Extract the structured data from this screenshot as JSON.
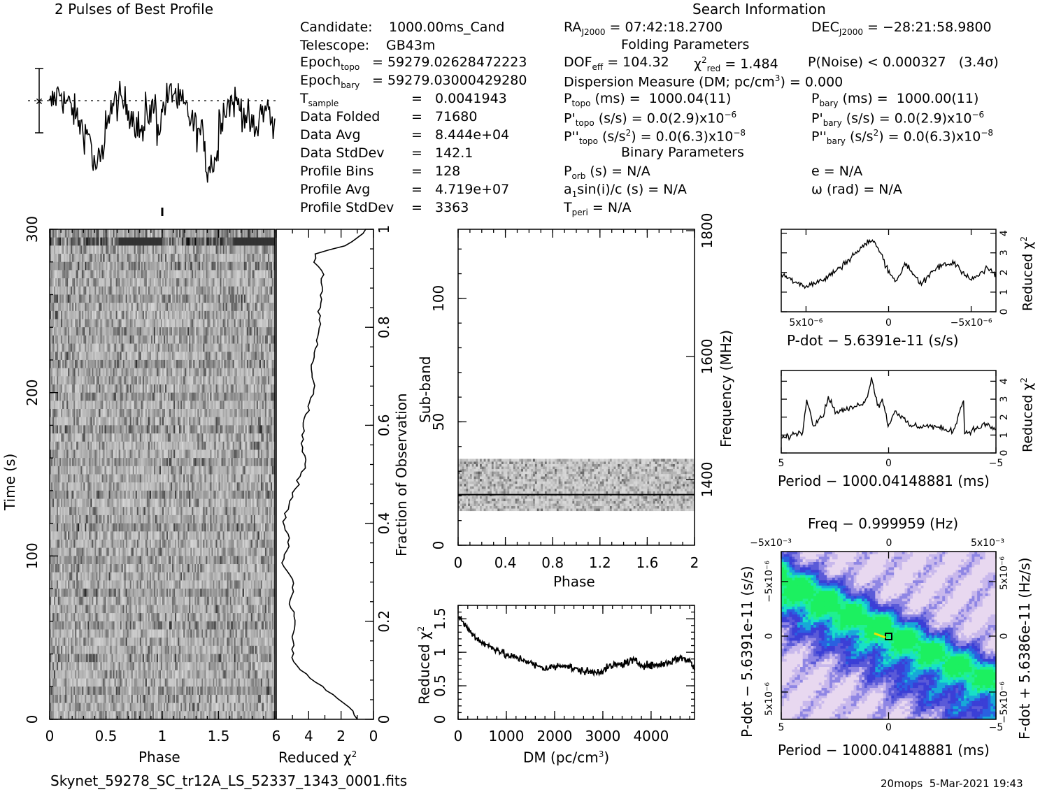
{
  "headers": {
    "profile_title": "2 Pulses of Best Profile",
    "search_title": "Search Information",
    "folding_title": "Folding Parameters",
    "binary_title": "Binary Parameters",
    "filename": "Skynet_59278_SC_tr12A_LS_52337_1343_0001.fits",
    "footer": "20mops  5-Mar-2021 19:43"
  },
  "candidate_info": [
    {
      "label": "Candidate:",
      "value": "1000.00ms_Cand"
    },
    {
      "label": "Telescope:",
      "value": "GB43m"
    },
    {
      "label": "Epoch_topo",
      "value": "= 59279.02628472223"
    },
    {
      "label": "Epoch_bary",
      "value": "= 59279.03000429280"
    },
    {
      "label": "T_sample",
      "value": "0.0041943"
    },
    {
      "label": "Data Folded",
      "value": "71680"
    },
    {
      "label": "Data Avg",
      "value": "8.444e+04"
    },
    {
      "label": "Data StdDev",
      "value": "142.1"
    },
    {
      "label": "Profile Bins",
      "value": "128"
    },
    {
      "label": "Profile Avg",
      "value": "4.719e+07"
    },
    {
      "label": "Profile StdDev",
      "value": "3363"
    }
  ],
  "search_info": {
    "ra": "RA_J2000 = 07:42:18.2700",
    "dec": "DEC_J2000 = −28:21:58.9800",
    "dof": "DOF_eff = 104.32",
    "chi2": "χ²_red = 1.484",
    "pnoise": "P(Noise) < 0.000327   (3.4σ)",
    "dm": "Dispersion Measure (DM; pc/cm³) = 0.000",
    "p_topo": "P_topo (ms) =  1000.04(11)",
    "p_bary": "P_bary (ms) =  1000.00(11)",
    "pd_topo": "P'_topo (s/s) = 0.0(2.9)x10⁻⁶",
    "pd_bary": "P'_bary (s/s) = 0.0(2.9)x10⁻⁶",
    "pdd_topo": "P''_topo (s/s²) = 0.0(6.3)x10⁻⁸",
    "pdd_bary": "P''_bary (s/s²) = 0.0(6.3)x10⁻⁸",
    "p_orb": "P_orb (s) = N/A",
    "e": "e = N/A",
    "a1": "a₁sin(i)/c (s) = N/A",
    "omega": "ω (rad) = N/A",
    "t_peri": "T_peri = N/A"
  },
  "chart_data": [
    {
      "type": "line",
      "title": "2 Pulses of Best Profile",
      "x": "phase 0–2 (two periods, 128 bins each)",
      "note": "noisy profile with dips near phase 0.4 and 1.95"
    },
    {
      "type": "heatmap",
      "name": "time-phase",
      "xlabel": "Phase",
      "ylabel": "Time (s)",
      "xlim": [
        0,
        2
      ],
      "ylim": [
        0,
        300
      ],
      "x_ticks": [
        "0",
        "0.5",
        "1",
        "1.5"
      ],
      "y_ticks": [
        "0",
        "100",
        "200",
        "300"
      ]
    },
    {
      "type": "line",
      "name": "time-chi2",
      "xlabel": "Reduced χ²",
      "ylabel": "Fraction of Observation",
      "xlim": [
        6,
        0
      ],
      "ylim": [
        0,
        1
      ],
      "x_ticks": [
        "6",
        "4",
        "2",
        "0"
      ],
      "y_ticks": [
        "0",
        "0.2",
        "0.4",
        "0.6",
        "0.8",
        "1"
      ],
      "x": [
        1.0,
        1.6,
        2.5,
        3.3,
        4.1,
        5.0,
        5.0,
        4.8,
        5.2,
        4.9,
        5.6,
        5.2,
        5.5,
        5.3,
        4.7,
        4.2,
        4.4,
        4.4,
        4.0,
        3.7,
        3.8,
        3.5,
        3.3,
        3.3,
        3.2,
        3.1,
        3.6,
        3.5,
        1.4,
        0.5
      ],
      "y": [
        0.0,
        0.03,
        0.05,
        0.07,
        0.09,
        0.12,
        0.16,
        0.2,
        0.24,
        0.28,
        0.32,
        0.36,
        0.4,
        0.44,
        0.48,
        0.52,
        0.56,
        0.6,
        0.64,
        0.68,
        0.72,
        0.76,
        0.8,
        0.84,
        0.88,
        0.91,
        0.93,
        0.95,
        0.97,
        1.0
      ]
    },
    {
      "type": "heatmap",
      "name": "subband-phase",
      "xlabel": "Phase",
      "ylabel": "Sub-band",
      "y2label": "Frequency (MHz)",
      "xlim": [
        0,
        2
      ],
      "ylim": [
        0,
        128
      ],
      "x_ticks": [
        "0",
        "0.4",
        "0.8",
        "1.2",
        "1.6",
        "2"
      ],
      "y_ticks": [
        "0",
        "50",
        "100"
      ],
      "y2_ticks": [
        "1400",
        "1600",
        "1800"
      ],
      "band_subbands": [
        14,
        35
      ]
    },
    {
      "type": "line",
      "name": "dm-chi2",
      "xlabel": "DM (pc/cm³)",
      "ylabel": "Reduced χ²",
      "xlim": [
        0,
        4900
      ],
      "ylim": [
        0,
        1.7
      ],
      "x_ticks": [
        "0",
        "1000",
        "2000",
        "3000",
        "4000"
      ],
      "y_ticks": [
        "0",
        "0.5",
        "1",
        "1.5"
      ],
      "x": [
        0,
        200,
        400,
        600,
        800,
        1000,
        1200,
        1400,
        1600,
        1800,
        2000,
        2200,
        2400,
        2600,
        2800,
        3000,
        3200,
        3400,
        3600,
        3800,
        4000,
        4200,
        4400,
        4600,
        4800,
        4900
      ],
      "y": [
        1.55,
        1.35,
        1.2,
        1.1,
        1.05,
        0.95,
        0.92,
        0.88,
        0.8,
        0.76,
        0.78,
        0.82,
        0.75,
        0.72,
        0.7,
        0.73,
        0.8,
        0.82,
        0.88,
        0.82,
        0.8,
        0.82,
        0.86,
        0.92,
        0.88,
        0.75
      ]
    },
    {
      "type": "line",
      "name": "pdot-chi2",
      "xlabel": "P-dot − 5.6391e-11 (s/s)",
      "ylabel": "Reduced χ²",
      "x_ticks": [
        "5x10⁻⁶",
        "0",
        "−5x10⁻⁶"
      ],
      "y_ticks": [
        "0",
        "1",
        "2",
        "3",
        "4"
      ],
      "ylim": [
        0,
        4
      ],
      "x": [
        6.5,
        6,
        5,
        4,
        3,
        2,
        1,
        0.5,
        0,
        -0.5,
        -1,
        -2,
        -3,
        -4,
        -5,
        -6,
        -6.5
      ],
      "y": [
        1.9,
        1.7,
        1.3,
        1.6,
        2.2,
        3.0,
        3.7,
        3.0,
        2.1,
        1.5,
        2.5,
        1.4,
        2.3,
        2.5,
        1.6,
        2.2,
        1.9
      ]
    },
    {
      "type": "line",
      "name": "period-chi2",
      "xlabel": "Period − 1000.04148881 (ms)",
      "ylabel": "Reduced χ²",
      "x_ticks": [
        "5",
        "0",
        "−5"
      ],
      "y_ticks": [
        "0",
        "1",
        "2",
        "3",
        "4"
      ],
      "ylim": [
        0,
        4.5
      ],
      "x": [
        5,
        4.5,
        4,
        3.8,
        3.5,
        3,
        2.8,
        2.5,
        2,
        1.5,
        1,
        0.8,
        0.5,
        0.3,
        0,
        -0.3,
        -1,
        -2,
        -3,
        -3.5,
        -3.2,
        -4,
        -4.5,
        -5
      ],
      "y": [
        0.8,
        1.0,
        1.2,
        3.0,
        1.6,
        2.2,
        3.2,
        2.3,
        2.4,
        2.6,
        3.0,
        4.3,
        2.6,
        3.0,
        1.5,
        2.4,
        1.5,
        1.5,
        1.2,
        3.0,
        1.0,
        1.3,
        1.6,
        1.3
      ]
    },
    {
      "type": "heatmap",
      "name": "ppdot",
      "title": "Freq − 0.999959 (Hz)",
      "xlabel": "Period − 1000.04148881 (ms)",
      "ylabel": "P-dot − 5.6391e-11 (s/s)",
      "y2label": "F-dot + 5.6386e-11 (Hz/s)",
      "x_ticks": [
        "5",
        "0",
        "−5"
      ],
      "top_ticks": [
        "−5x10⁻³",
        "0",
        "5x10⁻³"
      ],
      "y_ticks": [
        "−5x10⁻⁶",
        "0",
        "5x10⁻⁶"
      ],
      "y2_ticks": [
        "5x10⁻⁶",
        "0",
        "−5x10⁻⁶"
      ]
    }
  ],
  "tick_labels": {
    "tp_x": [
      "0",
      "0.5",
      "1",
      "1.5"
    ],
    "tp_y": [
      "0",
      "100",
      "200",
      "300"
    ],
    "tc_x": [
      "6",
      "4",
      "2",
      "0"
    ],
    "tc_y": [
      "0",
      "0.2",
      "0.4",
      "0.6",
      "0.8",
      "1"
    ],
    "sp_x": [
      "0",
      "0.4",
      "0.8",
      "1.2",
      "1.6",
      "2"
    ],
    "sp_y": [
      "0",
      "50",
      "100"
    ],
    "sp_y2": [
      "1400",
      "1600",
      "1800"
    ],
    "dm_x": [
      "0",
      "1000",
      "2000",
      "3000",
      "4000"
    ],
    "dm_y": [
      "0",
      "0.5",
      "1",
      "1.5"
    ],
    "pd_y": [
      "0",
      "1",
      "2",
      "3",
      "4"
    ],
    "pd_x": [
      "5x10⁻⁶",
      "0",
      "−5x10⁻⁶"
    ],
    "pe_y": [
      "0",
      "1",
      "2",
      "3",
      "4"
    ],
    "pe_x": [
      "5",
      "0",
      "−5"
    ],
    "pp_x": [
      "5",
      "0",
      "−5"
    ],
    "pp_top": [
      "−5x10⁻³",
      "0",
      "5x10⁻³"
    ],
    "pp_y": [
      "−5x10⁻⁶",
      "0",
      "5x10⁻⁶"
    ],
    "pp_y2": [
      "5x10⁻⁶",
      "0",
      "−5x10⁻⁶"
    ]
  },
  "axis_labels": {
    "phase": "Phase",
    "time": "Time (s)",
    "reduced_chi2": "Reduced χ²",
    "fraction": "Fraction of Observation",
    "subband": "Sub-band",
    "frequency": "Frequency (MHz)",
    "dm": "DM (pc/cm³)",
    "pdot": "P-dot − 5.6391e-11 (s/s)",
    "period": "Period − 1000.04148881 (ms)",
    "freq": "Freq − 0.999959 (Hz)",
    "pdot_pp": "P-dot − 5.6391e-11 (s/s)",
    "fdot": "F-dot + 5.6386e-11 (Hz/s)"
  },
  "colors": {
    "ink": "#000000",
    "background": "#ffffff",
    "ppdot_low": "#3b3fd6",
    "ppdot_mid": "#18e0c8",
    "ppdot_high": "#1cf060",
    "ppdot_peak": "#f0e000"
  }
}
